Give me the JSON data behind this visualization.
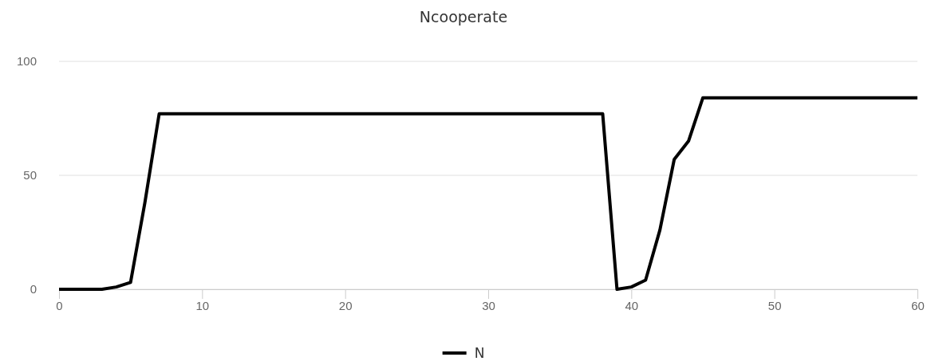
{
  "chart_data": {
    "type": "line",
    "title": "Ncooperate",
    "x": [
      0,
      1,
      2,
      3,
      4,
      5,
      6,
      7,
      8,
      9,
      10,
      11,
      12,
      13,
      14,
      15,
      16,
      17,
      18,
      19,
      20,
      21,
      22,
      23,
      24,
      25,
      26,
      27,
      28,
      29,
      30,
      31,
      32,
      33,
      34,
      35,
      36,
      37,
      38,
      39,
      40,
      41,
      42,
      43,
      44,
      45,
      46,
      47,
      48,
      49,
      50,
      51,
      52,
      53,
      54,
      55,
      56,
      57,
      58,
      59,
      60
    ],
    "series": [
      {
        "name": "N",
        "color": "#000000",
        "values": [
          0,
          0,
          0,
          0,
          1,
          3,
          38,
          77,
          77,
          77,
          77,
          77,
          77,
          77,
          77,
          77,
          77,
          77,
          77,
          77,
          77,
          77,
          77,
          77,
          77,
          77,
          77,
          77,
          77,
          77,
          77,
          77,
          77,
          77,
          77,
          77,
          77,
          77,
          77,
          0,
          1,
          4,
          26,
          57,
          65,
          84,
          84,
          84,
          84,
          84,
          84,
          84,
          84,
          84,
          84,
          84,
          84,
          84,
          84,
          84,
          84
        ]
      }
    ],
    "xlim": [
      0,
      60
    ],
    "xticks": [
      0,
      10,
      20,
      30,
      40,
      50,
      60
    ],
    "ylim": [
      0,
      100
    ],
    "yticks": [
      0,
      50,
      100
    ],
    "grid": "y",
    "legend": "bottom",
    "marker": "none",
    "line_style": "solid"
  }
}
